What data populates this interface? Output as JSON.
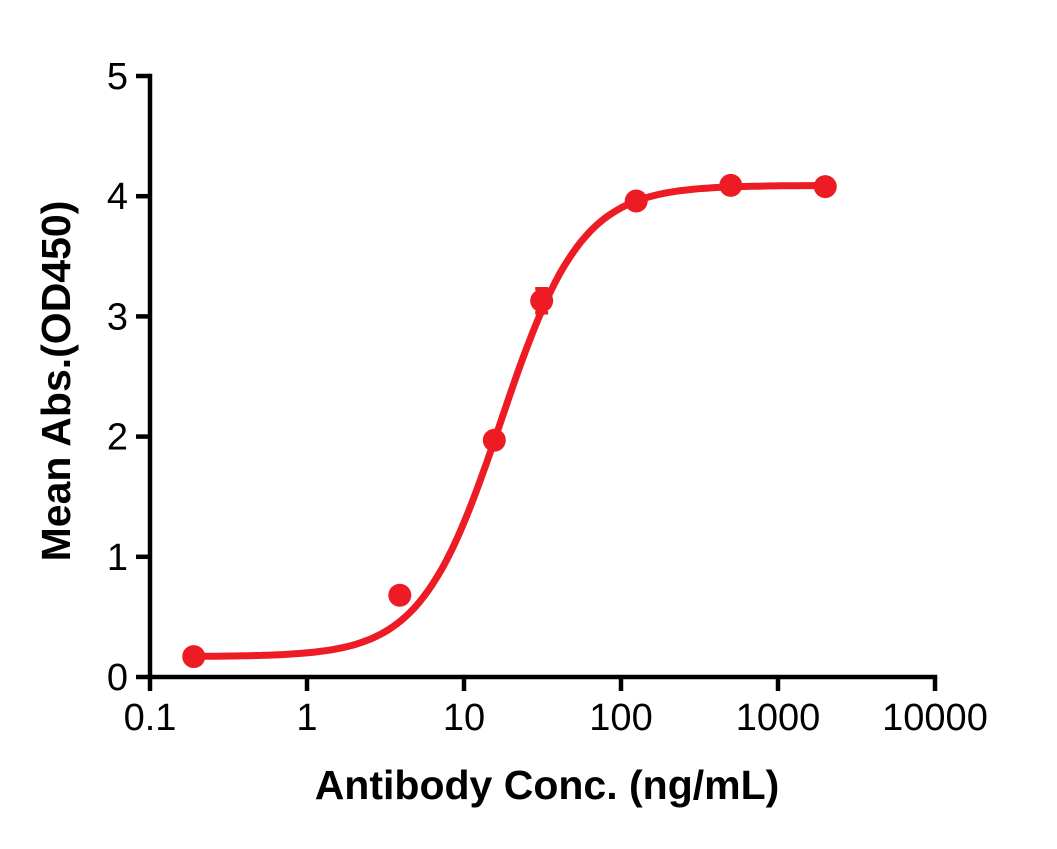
{
  "chart_data": {
    "type": "scatter",
    "title": "",
    "xlabel": "Antibody Conc. (ng/mL)",
    "ylabel": "Mean Abs.(OD450)",
    "x_scale": "log10",
    "xlim": [
      0.1,
      10000
    ],
    "ylim": [
      0,
      5
    ],
    "x_ticks": [
      0.1,
      1,
      10,
      100,
      1000,
      10000
    ],
    "x_tick_labels": [
      "0.1",
      "1",
      "10",
      "100",
      "1000",
      "10000"
    ],
    "y_ticks": [
      0,
      1,
      2,
      3,
      4,
      5
    ],
    "y_tick_labels": [
      "0",
      "1",
      "2",
      "3",
      "4",
      "5"
    ],
    "grid": false,
    "legend_position": "none",
    "background_color": "#FFFFFF",
    "axis_color": "#000000",
    "series": [
      {
        "color": "#ED1C24",
        "marker": "circle",
        "points": [
          {
            "x": 0.19,
            "y": 0.17,
            "err": 0
          },
          {
            "x": 3.9,
            "y": 0.68,
            "err": 0
          },
          {
            "x": 15.6,
            "y": 1.97,
            "err": 0
          },
          {
            "x": 31.25,
            "y": 3.13,
            "err": 0.1
          },
          {
            "x": 125,
            "y": 3.96,
            "err": 0
          },
          {
            "x": 500,
            "y": 4.09,
            "err": 0
          },
          {
            "x": 2000,
            "y": 4.08,
            "err": 0
          }
        ],
        "fit": {
          "model": "4PL",
          "bottom": 0.17,
          "top": 4.09,
          "ec50": 17.2,
          "hill": 1.7,
          "x_range": [
            0.19,
            2000
          ]
        }
      }
    ]
  }
}
